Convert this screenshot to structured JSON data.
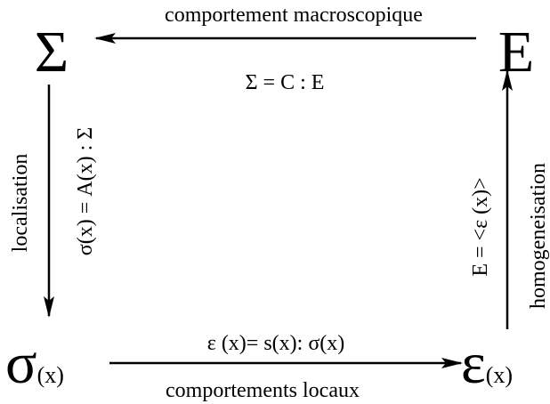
{
  "nodes": [
    {
      "symbol": "Σ"
    },
    {
      "symbol": "E"
    },
    {
      "symbol": "σ",
      "suffix": "(x)"
    },
    {
      "symbol": "ε",
      "suffix": "(x)"
    }
  ],
  "edges": [
    {
      "label": "comportement macroscopique",
      "equation": "Σ = C : E"
    },
    {
      "label": "localisation",
      "equation": "σ(x) = A(x) : Σ"
    },
    {
      "label": "homogeneisation",
      "equation": "E = <ε (x)>"
    },
    {
      "label": "comportements locaux",
      "equation": "ε (x)= s(x): σ(x)"
    }
  ]
}
